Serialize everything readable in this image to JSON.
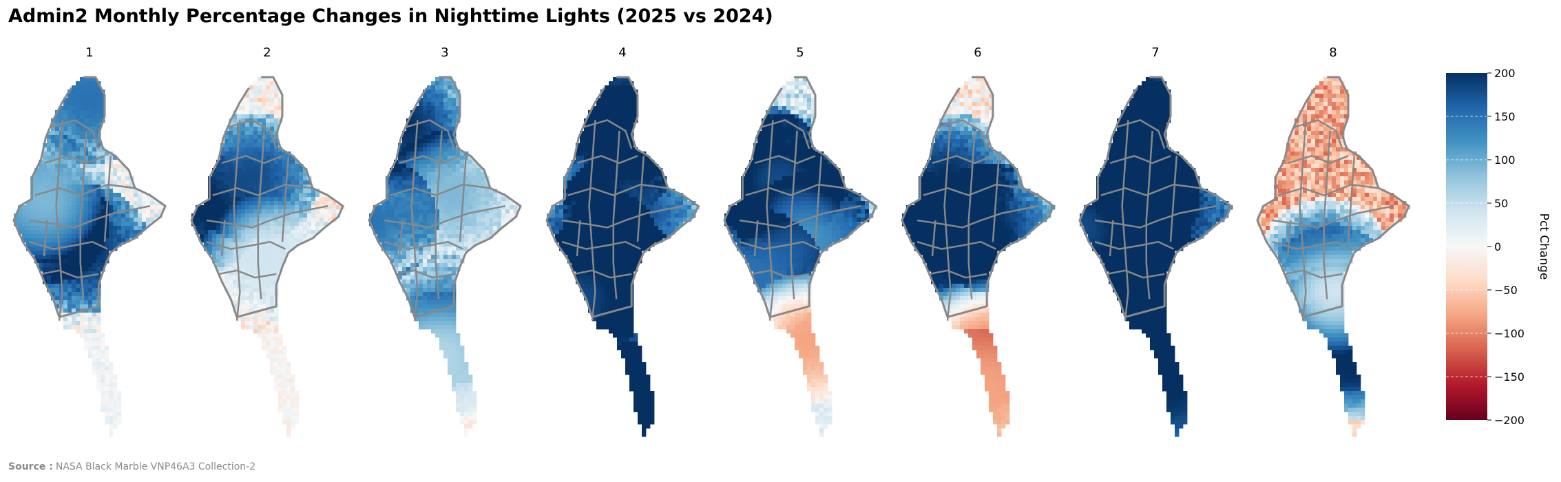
{
  "title": "Admin2 Monthly Percentage Changes in Nighttime Lights (2025 vs 2024)",
  "source": {
    "label": "Source :",
    "text": "NASA Black Marble VNP46A3 Collection-2"
  },
  "panels": [
    {
      "label": "1",
      "base": 12,
      "seed": 11,
      "hot": [
        [
          0.5,
          0.06,
          150
        ],
        [
          0.45,
          0.48,
          200
        ],
        [
          0.18,
          0.4,
          140
        ],
        [
          0.2,
          0.34,
          90
        ]
      ]
    },
    {
      "label": "2",
      "base": -8,
      "seed": 23,
      "hot": [
        [
          0.0,
          0.38,
          200
        ],
        [
          0.4,
          0.28,
          180
        ],
        [
          0.5,
          0.5,
          40
        ]
      ]
    },
    {
      "label": "3",
      "base": -22,
      "seed": 37,
      "hot": [
        [
          0.25,
          0.14,
          200
        ],
        [
          0.55,
          0.33,
          90
        ],
        [
          0.0,
          0.4,
          150
        ],
        [
          0.5,
          0.68,
          150
        ],
        [
          0.48,
          0.78,
          60
        ]
      ]
    },
    {
      "label": "4",
      "base": 25,
      "seed": 41,
      "hot": [
        [
          0.48,
          0.07,
          200
        ],
        [
          0.45,
          0.2,
          200
        ],
        [
          0.55,
          0.38,
          180
        ],
        [
          0.3,
          0.48,
          200
        ],
        [
          0.42,
          0.55,
          200
        ],
        [
          0.2,
          0.62,
          180
        ],
        [
          0.6,
          0.82,
          200
        ],
        [
          0.6,
          0.92,
          200
        ]
      ]
    },
    {
      "label": "5",
      "base": 40,
      "seed": 53,
      "hot": [
        [
          0.2,
          0.25,
          200
        ],
        [
          0.0,
          0.35,
          150
        ],
        [
          0.5,
          0.37,
          200
        ],
        [
          0.35,
          0.28,
          180
        ],
        [
          0.55,
          0.45,
          120
        ],
        [
          0.2,
          0.55,
          150
        ],
        [
          0.55,
          0.73,
          -80
        ]
      ]
    },
    {
      "label": "6",
      "base": -15,
      "seed": 67,
      "hot": [
        [
          0.3,
          0.28,
          200
        ],
        [
          0.0,
          0.43,
          200
        ],
        [
          0.4,
          0.55,
          200
        ],
        [
          0.6,
          0.42,
          200
        ],
        [
          0.55,
          0.74,
          -90
        ],
        [
          0.52,
          0.88,
          -80
        ]
      ]
    },
    {
      "label": "7",
      "base": 45,
      "seed": 79,
      "hot": [
        [
          0.5,
          0.08,
          200
        ],
        [
          0.35,
          0.18,
          200
        ],
        [
          0.35,
          0.33,
          200
        ],
        [
          0.55,
          0.38,
          200
        ],
        [
          0.3,
          0.47,
          200
        ],
        [
          0.0,
          0.42,
          180
        ],
        [
          0.45,
          0.66,
          200
        ],
        [
          0.55,
          0.72,
          200
        ],
        [
          0.6,
          0.88,
          200
        ]
      ]
    },
    {
      "label": "8",
      "base": -72,
      "seed": 97,
      "hot": [
        [
          0.45,
          0.52,
          200
        ],
        [
          0.55,
          0.7,
          200
        ],
        [
          0.6,
          0.78,
          200
        ],
        [
          0.5,
          0.6,
          40
        ]
      ]
    }
  ],
  "colorbar": {
    "label": "Pct Change",
    "min": -200,
    "max": 200,
    "ticks": [
      200,
      150,
      100,
      50,
      0,
      -50,
      -100,
      -150,
      -200
    ],
    "tick_labels": [
      "200",
      "150",
      "100",
      "50",
      "0",
      "−50",
      "−100",
      "−150",
      "−200"
    ],
    "colormap": "RdBu",
    "dashed_ticks": true
  },
  "boundary_color": "#888888"
}
